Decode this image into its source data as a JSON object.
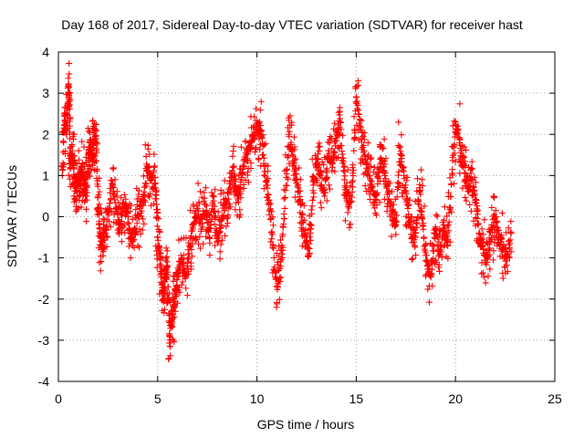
{
  "chart_data": {
    "type": "scatter",
    "title": "Day 168 of 2017, Sidereal Day-to-day VTEC variation (SDTVAR) for receiver hast",
    "xlabel": "GPS time / hours",
    "ylabel": "SDTVAR / TECUs",
    "xlim": [
      0,
      25
    ],
    "ylim": [
      -4,
      4
    ],
    "x_ticks": [
      0,
      5,
      10,
      15,
      20,
      25
    ],
    "y_ticks": [
      -4,
      -3,
      -2,
      -1,
      0,
      1,
      2,
      3,
      4
    ],
    "x_tick_labels": [
      "0",
      "5",
      "10",
      "15",
      "20",
      "25"
    ],
    "y_tick_labels": [
      "-4",
      "-3",
      "-2",
      "-1",
      "0",
      "1",
      "2",
      "3",
      "4"
    ],
    "grid": true,
    "marker": "+",
    "marker_color": "#ff0000",
    "series": [
      {
        "name": "SDTVAR",
        "x": [
          0.2,
          0.3,
          0.4,
          0.5,
          0.55,
          0.6,
          0.7,
          0.8,
          0.9,
          1.0,
          1.1,
          1.2,
          1.3,
          1.4,
          1.5,
          1.6,
          1.7,
          1.8,
          1.9,
          2.0,
          2.1,
          2.2,
          2.3,
          2.5,
          2.7,
          2.9,
          3.1,
          3.3,
          3.5,
          3.7,
          3.9,
          4.1,
          4.3,
          4.5,
          4.7,
          4.9,
          5.0,
          5.1,
          5.2,
          5.3,
          5.4,
          5.5,
          5.6,
          5.7,
          5.8,
          5.9,
          6.0,
          6.2,
          6.4,
          6.6,
          6.8,
          7.0,
          7.2,
          7.4,
          7.6,
          7.8,
          8.0,
          8.2,
          8.4,
          8.6,
          8.8,
          9.0,
          9.2,
          9.4,
          9.6,
          9.8,
          10.0,
          10.2,
          10.4,
          10.6,
          10.8,
          11.0,
          11.2,
          11.4,
          11.6,
          11.8,
          12.0,
          12.2,
          12.4,
          12.6,
          12.8,
          13.0,
          13.2,
          13.4,
          13.6,
          13.8,
          14.0,
          14.2,
          14.4,
          14.6,
          14.8,
          15.0,
          15.2,
          15.4,
          15.6,
          15.8,
          16.0,
          16.2,
          16.4,
          16.6,
          16.8,
          17.0,
          17.2,
          17.4,
          17.6,
          17.8,
          18.0,
          18.2,
          18.4,
          18.6,
          18.8,
          19.0,
          19.2,
          19.4,
          19.6,
          19.8,
          20.0,
          20.2,
          20.4,
          20.6,
          20.8,
          21.0,
          21.2,
          21.4,
          21.6,
          21.8,
          22.0,
          22.2,
          22.4,
          22.6,
          22.8
        ],
        "y": [
          1.0,
          2.5,
          2.0,
          3.2,
          2.8,
          1.3,
          1.6,
          0.8,
          0.7,
          1.0,
          0.6,
          1.2,
          0.9,
          0.5,
          1.5,
          1.8,
          1.4,
          2.0,
          1.9,
          0.2,
          -0.3,
          -0.8,
          -0.5,
          0.1,
          0.8,
          0.2,
          -0.2,
          0.3,
          0.0,
          -0.6,
          -0.3,
          0.2,
          0.4,
          1.2,
          0.9,
          0.7,
          -0.5,
          -0.9,
          -1.6,
          -2.0,
          -1.4,
          -1.2,
          -2.9,
          -2.6,
          -2.2,
          -1.8,
          -1.4,
          -1.0,
          -1.5,
          -0.7,
          -0.2,
          0.2,
          -0.3,
          0.3,
          -0.5,
          0.5,
          -0.6,
          -0.1,
          0.3,
          0.6,
          1.2,
          0.5,
          0.9,
          1.4,
          1.7,
          2.0,
          2.2,
          2.1,
          1.1,
          0.4,
          -0.7,
          -1.7,
          -1.2,
          0.2,
          2.0,
          1.5,
          0.9,
          0.3,
          -0.5,
          -0.9,
          0.4,
          1.4,
          1.0,
          0.5,
          1.6,
          1.2,
          2.0,
          2.3,
          0.9,
          0.3,
          0.6,
          2.9,
          2.2,
          1.6,
          1.1,
          0.7,
          0.4,
          1.4,
          1.1,
          0.6,
          0.1,
          -0.2,
          1.7,
          1.0,
          0.2,
          -0.5,
          -0.4,
          0.6,
          -0.5,
          -1.2,
          -1.4,
          -0.3,
          -0.9,
          -0.2,
          -0.6,
          0.8,
          2.3,
          1.8,
          1.2,
          0.7,
          0.9,
          0.4,
          -0.4,
          -0.8,
          -1.1,
          -0.3,
          0.0,
          -0.5,
          -0.8,
          -1.0,
          -0.4
        ]
      }
    ]
  }
}
